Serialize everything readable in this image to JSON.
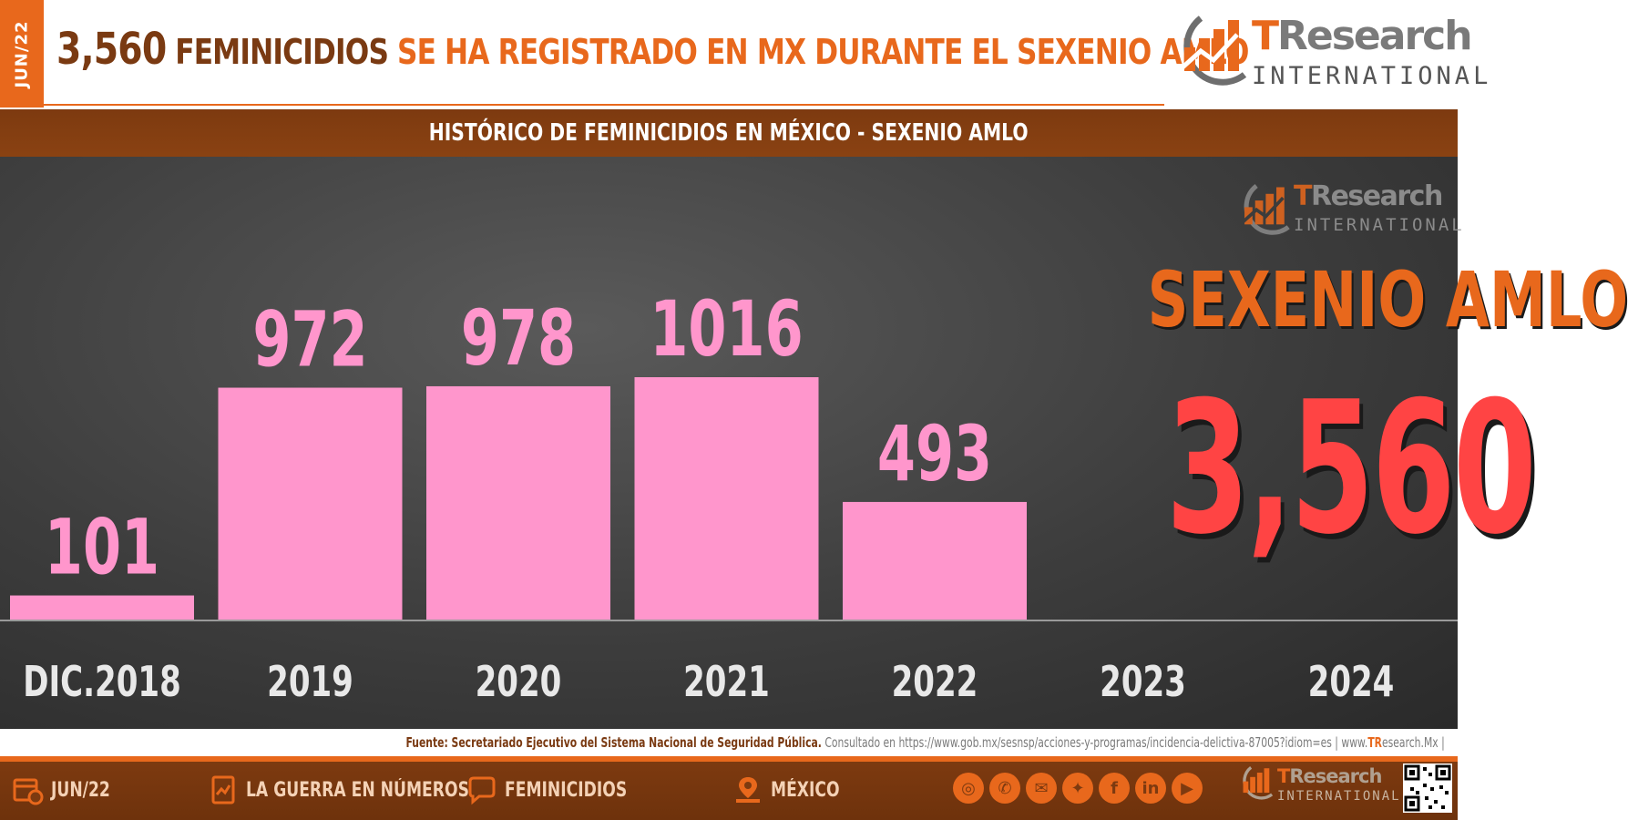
{
  "header": {
    "date_tab": "JUN/22",
    "headline_number": "3,560",
    "headline_word": "FEMINICIDIOS",
    "headline_rest": "SE HA REGISTRADO EN MX DURANTE EL SEXENIO AMLO",
    "logo_brand_accent": "T",
    "logo_brand_rest": "Research",
    "logo_sub": "INTERNATIONAL"
  },
  "subtitle": "HISTÓRICO DE FEMINICIDIOS EN MÉXICO -  SEXENIO AMLO",
  "chart_data": {
    "type": "bar",
    "title": "HISTÓRICO DE FEMINICIDIOS EN MÉXICO -  SEXENIO AMLO",
    "categories": [
      "DIC.2018",
      "2019",
      "2020",
      "2021",
      "2022",
      "2023",
      "2024"
    ],
    "values": [
      101,
      972,
      978,
      1016,
      493,
      null,
      null
    ],
    "value_labels": [
      "101",
      "972",
      "978",
      "1016",
      "493",
      "",
      ""
    ],
    "ylim": [
      0,
      1016
    ],
    "grid": false,
    "bar_color": "#ff96cc"
  },
  "summary": {
    "label": "SEXENIO AMLO",
    "total": "3,560"
  },
  "source": {
    "part_a": "Fuente: Secretariado Ejecutivo del Sistema Nacional de Seguridad Pública.",
    "part_b": "Consultado en https://www.gob.mx/sesnsp/acciones-y-programas/incidencia-delictiva-87005?idiom=es |",
    "part_c_pre": "www.",
    "part_c_accent": "TR",
    "part_c_post": "esearch.Mx |"
  },
  "footer": {
    "items": [
      {
        "label": "JUN/22",
        "icon": "calendar-icon"
      },
      {
        "label": "LA GUERRA EN NÚMEROS",
        "icon": "report-icon"
      },
      {
        "label": "FEMINICIDIOS",
        "icon": "speech-bubble-icon"
      },
      {
        "label": "MÉXICO",
        "icon": "map-pin-icon"
      }
    ],
    "social_icons": [
      "globe-icon",
      "phone-icon",
      "mail-icon",
      "twitter-icon",
      "facebook-icon",
      "linkedin-icon",
      "youtube-icon"
    ]
  },
  "colors": {
    "brand_orange": "#e8681c",
    "brand_brown": "#7a3a12",
    "bar_pink": "#ff96cc",
    "total_red": "#ff4444"
  }
}
